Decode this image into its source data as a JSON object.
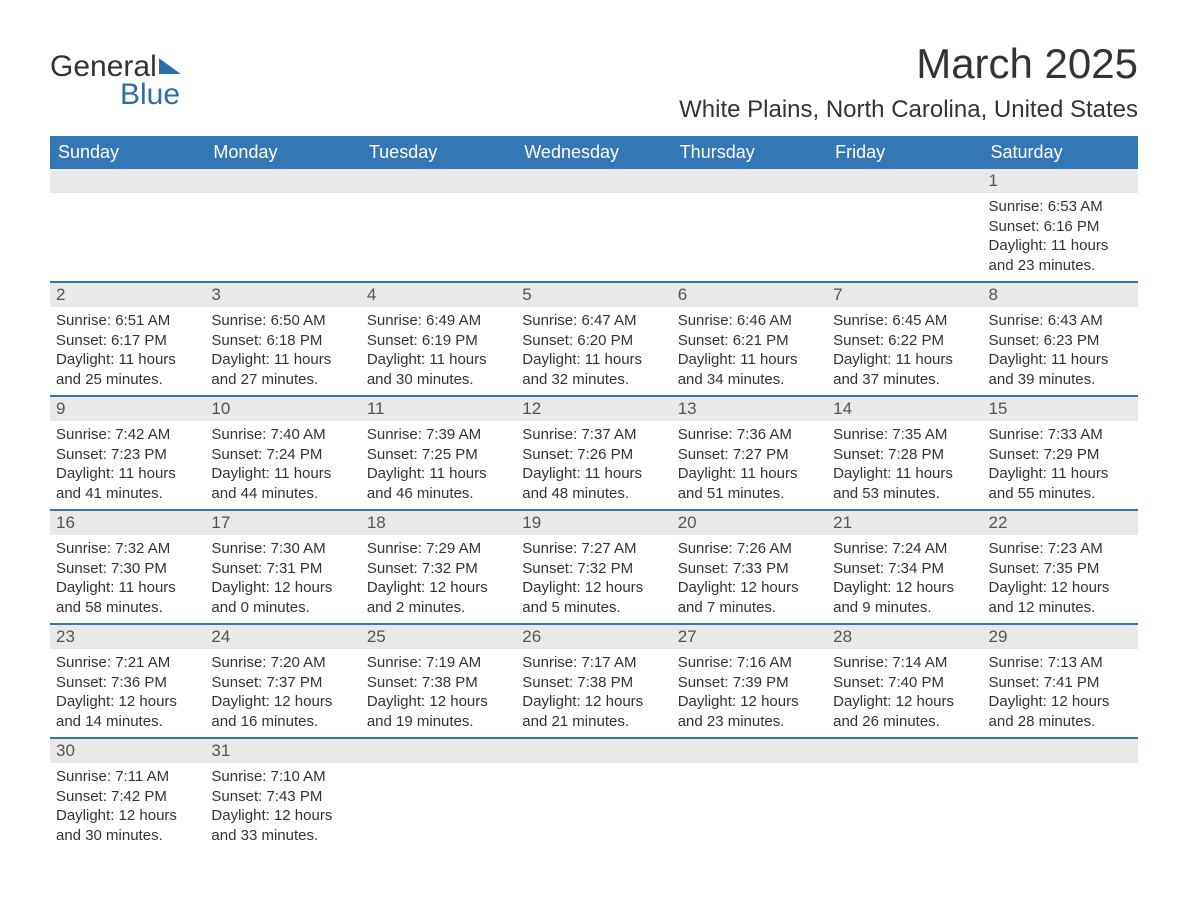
{
  "logo": {
    "word1": "General",
    "word2": "Blue"
  },
  "title": "March 2025",
  "location": "White Plains, North Carolina, United States",
  "colors": {
    "header_bg": "#3477b5",
    "header_text": "#ffffff",
    "daynum_bg": "#e9e9e9",
    "row_border": "#3477b5",
    "text": "#333333",
    "logo_blue": "#2e6ea8"
  },
  "weekdays": [
    "Sunday",
    "Monday",
    "Tuesday",
    "Wednesday",
    "Thursday",
    "Friday",
    "Saturday"
  ],
  "weeks": [
    [
      {
        "empty": true
      },
      {
        "empty": true
      },
      {
        "empty": true
      },
      {
        "empty": true
      },
      {
        "empty": true
      },
      {
        "empty": true
      },
      {
        "day": "1",
        "sunrise": "Sunrise: 6:53 AM",
        "sunset": "Sunset: 6:16 PM",
        "daylight1": "Daylight: 11 hours",
        "daylight2": "and 23 minutes."
      }
    ],
    [
      {
        "day": "2",
        "sunrise": "Sunrise: 6:51 AM",
        "sunset": "Sunset: 6:17 PM",
        "daylight1": "Daylight: 11 hours",
        "daylight2": "and 25 minutes."
      },
      {
        "day": "3",
        "sunrise": "Sunrise: 6:50 AM",
        "sunset": "Sunset: 6:18 PM",
        "daylight1": "Daylight: 11 hours",
        "daylight2": "and 27 minutes."
      },
      {
        "day": "4",
        "sunrise": "Sunrise: 6:49 AM",
        "sunset": "Sunset: 6:19 PM",
        "daylight1": "Daylight: 11 hours",
        "daylight2": "and 30 minutes."
      },
      {
        "day": "5",
        "sunrise": "Sunrise: 6:47 AM",
        "sunset": "Sunset: 6:20 PM",
        "daylight1": "Daylight: 11 hours",
        "daylight2": "and 32 minutes."
      },
      {
        "day": "6",
        "sunrise": "Sunrise: 6:46 AM",
        "sunset": "Sunset: 6:21 PM",
        "daylight1": "Daylight: 11 hours",
        "daylight2": "and 34 minutes."
      },
      {
        "day": "7",
        "sunrise": "Sunrise: 6:45 AM",
        "sunset": "Sunset: 6:22 PM",
        "daylight1": "Daylight: 11 hours",
        "daylight2": "and 37 minutes."
      },
      {
        "day": "8",
        "sunrise": "Sunrise: 6:43 AM",
        "sunset": "Sunset: 6:23 PM",
        "daylight1": "Daylight: 11 hours",
        "daylight2": "and 39 minutes."
      }
    ],
    [
      {
        "day": "9",
        "sunrise": "Sunrise: 7:42 AM",
        "sunset": "Sunset: 7:23 PM",
        "daylight1": "Daylight: 11 hours",
        "daylight2": "and 41 minutes."
      },
      {
        "day": "10",
        "sunrise": "Sunrise: 7:40 AM",
        "sunset": "Sunset: 7:24 PM",
        "daylight1": "Daylight: 11 hours",
        "daylight2": "and 44 minutes."
      },
      {
        "day": "11",
        "sunrise": "Sunrise: 7:39 AM",
        "sunset": "Sunset: 7:25 PM",
        "daylight1": "Daylight: 11 hours",
        "daylight2": "and 46 minutes."
      },
      {
        "day": "12",
        "sunrise": "Sunrise: 7:37 AM",
        "sunset": "Sunset: 7:26 PM",
        "daylight1": "Daylight: 11 hours",
        "daylight2": "and 48 minutes."
      },
      {
        "day": "13",
        "sunrise": "Sunrise: 7:36 AM",
        "sunset": "Sunset: 7:27 PM",
        "daylight1": "Daylight: 11 hours",
        "daylight2": "and 51 minutes."
      },
      {
        "day": "14",
        "sunrise": "Sunrise: 7:35 AM",
        "sunset": "Sunset: 7:28 PM",
        "daylight1": "Daylight: 11 hours",
        "daylight2": "and 53 minutes."
      },
      {
        "day": "15",
        "sunrise": "Sunrise: 7:33 AM",
        "sunset": "Sunset: 7:29 PM",
        "daylight1": "Daylight: 11 hours",
        "daylight2": "and 55 minutes."
      }
    ],
    [
      {
        "day": "16",
        "sunrise": "Sunrise: 7:32 AM",
        "sunset": "Sunset: 7:30 PM",
        "daylight1": "Daylight: 11 hours",
        "daylight2": "and 58 minutes."
      },
      {
        "day": "17",
        "sunrise": "Sunrise: 7:30 AM",
        "sunset": "Sunset: 7:31 PM",
        "daylight1": "Daylight: 12 hours",
        "daylight2": "and 0 minutes."
      },
      {
        "day": "18",
        "sunrise": "Sunrise: 7:29 AM",
        "sunset": "Sunset: 7:32 PM",
        "daylight1": "Daylight: 12 hours",
        "daylight2": "and 2 minutes."
      },
      {
        "day": "19",
        "sunrise": "Sunrise: 7:27 AM",
        "sunset": "Sunset: 7:32 PM",
        "daylight1": "Daylight: 12 hours",
        "daylight2": "and 5 minutes."
      },
      {
        "day": "20",
        "sunrise": "Sunrise: 7:26 AM",
        "sunset": "Sunset: 7:33 PM",
        "daylight1": "Daylight: 12 hours",
        "daylight2": "and 7 minutes."
      },
      {
        "day": "21",
        "sunrise": "Sunrise: 7:24 AM",
        "sunset": "Sunset: 7:34 PM",
        "daylight1": "Daylight: 12 hours",
        "daylight2": "and 9 minutes."
      },
      {
        "day": "22",
        "sunrise": "Sunrise: 7:23 AM",
        "sunset": "Sunset: 7:35 PM",
        "daylight1": "Daylight: 12 hours",
        "daylight2": "and 12 minutes."
      }
    ],
    [
      {
        "day": "23",
        "sunrise": "Sunrise: 7:21 AM",
        "sunset": "Sunset: 7:36 PM",
        "daylight1": "Daylight: 12 hours",
        "daylight2": "and 14 minutes."
      },
      {
        "day": "24",
        "sunrise": "Sunrise: 7:20 AM",
        "sunset": "Sunset: 7:37 PM",
        "daylight1": "Daylight: 12 hours",
        "daylight2": "and 16 minutes."
      },
      {
        "day": "25",
        "sunrise": "Sunrise: 7:19 AM",
        "sunset": "Sunset: 7:38 PM",
        "daylight1": "Daylight: 12 hours",
        "daylight2": "and 19 minutes."
      },
      {
        "day": "26",
        "sunrise": "Sunrise: 7:17 AM",
        "sunset": "Sunset: 7:38 PM",
        "daylight1": "Daylight: 12 hours",
        "daylight2": "and 21 minutes."
      },
      {
        "day": "27",
        "sunrise": "Sunrise: 7:16 AM",
        "sunset": "Sunset: 7:39 PM",
        "daylight1": "Daylight: 12 hours",
        "daylight2": "and 23 minutes."
      },
      {
        "day": "28",
        "sunrise": "Sunrise: 7:14 AM",
        "sunset": "Sunset: 7:40 PM",
        "daylight1": "Daylight: 12 hours",
        "daylight2": "and 26 minutes."
      },
      {
        "day": "29",
        "sunrise": "Sunrise: 7:13 AM",
        "sunset": "Sunset: 7:41 PM",
        "daylight1": "Daylight: 12 hours",
        "daylight2": "and 28 minutes."
      }
    ],
    [
      {
        "day": "30",
        "sunrise": "Sunrise: 7:11 AM",
        "sunset": "Sunset: 7:42 PM",
        "daylight1": "Daylight: 12 hours",
        "daylight2": "and 30 minutes."
      },
      {
        "day": "31",
        "sunrise": "Sunrise: 7:10 AM",
        "sunset": "Sunset: 7:43 PM",
        "daylight1": "Daylight: 12 hours",
        "daylight2": "and 33 minutes."
      },
      {
        "empty": true
      },
      {
        "empty": true
      },
      {
        "empty": true
      },
      {
        "empty": true
      },
      {
        "empty": true
      }
    ]
  ]
}
